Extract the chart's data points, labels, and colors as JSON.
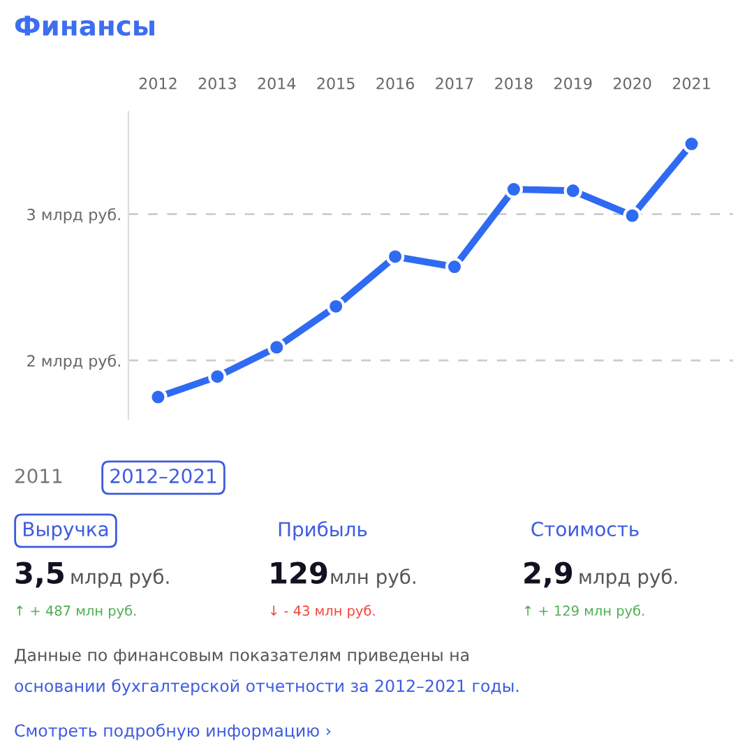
{
  "chart_data": {
    "type": "line",
    "title": "Финансы",
    "categories": [
      "2012",
      "2013",
      "2014",
      "2015",
      "2016",
      "2017",
      "2018",
      "2019",
      "2020",
      "2021"
    ],
    "series": [
      {
        "color": "#2f6af2",
        "values": [
          1.75,
          1.89,
          2.09,
          2.37,
          2.71,
          2.64,
          3.17,
          3.16,
          2.99,
          3.48
        ]
      }
    ],
    "yticks": [
      {
        "value": 2,
        "label": "2 млрд руб."
      },
      {
        "value": 3,
        "label": "3 млрд руб."
      }
    ],
    "ylim": [
      1.6,
      3.7
    ],
    "grid": "y",
    "legend": false,
    "marker": "circle",
    "line_style": "solid",
    "annotations": [
      "2011",
      "2012–2021",
      "Выручка",
      "Прибыль",
      "Стоимость",
      "3,5",
      "млрд руб.",
      "129",
      "млн руб.",
      "2,9",
      "млрд руб.",
      "↑ + 487 млн руб.",
      "↓ - 43 млн руб.",
      "↑ + 129 млн руб.",
      "Данные по финансовым показателям приведены на",
      "основании бухгалтерской отчетности за 2012–2021 годы.",
      "Смотреть подробную информацию ›"
    ]
  }
}
